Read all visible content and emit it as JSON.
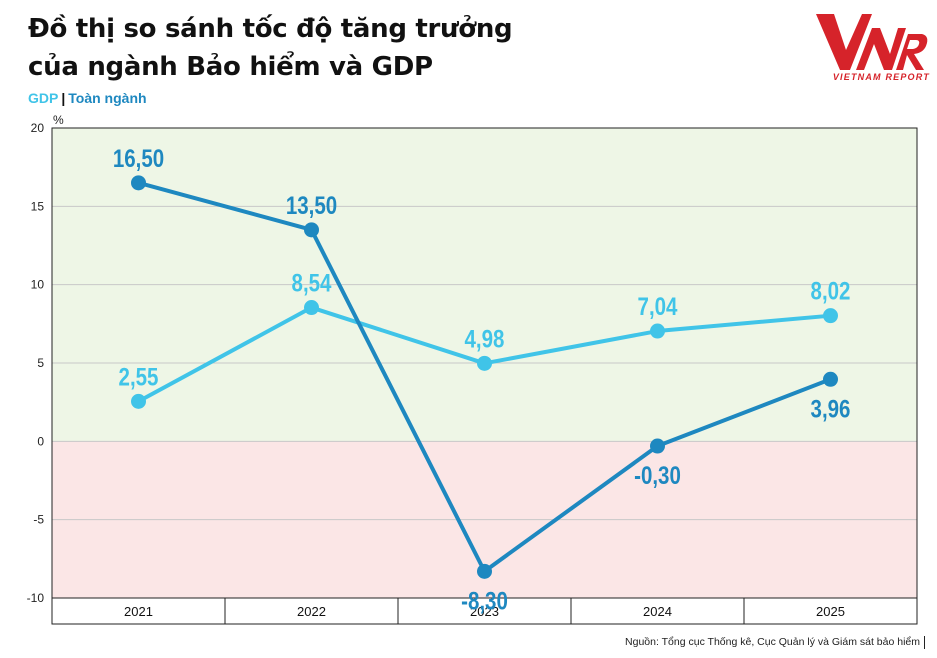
{
  "header": {
    "title_line1": "Đồ thị so sánh tốc độ tăng trưởng",
    "title_line2": "của ngành Bảo hiểm và GDP",
    "legend_gdp": "GDP",
    "legend_separator": "|",
    "legend_industry": "Toàn ngành"
  },
  "logo": {
    "mark": "VNR",
    "subtitle": "VIETNAM REPORT",
    "color": "#d6232a"
  },
  "source": "Nguồn: Tổng cục Thống kê, Cục Quản lý và Giám sát bảo hiểm",
  "colors": {
    "gdp": "#40c4e8",
    "industry": "#1e88c0",
    "positive_zone": "#eef6e6",
    "negative_zone": "#fbe6e6"
  },
  "chart_data": {
    "type": "line",
    "title": "Đồ thị so sánh tốc độ tăng trưởng của ngành Bảo hiểm và GDP",
    "ylabel": "%",
    "categories": [
      "2021",
      "2022",
      "2023",
      "2024",
      "2025"
    ],
    "ylim": [
      -10,
      20
    ],
    "yticks": [
      20,
      15,
      10,
      5,
      0,
      -5,
      -10
    ],
    "grid": true,
    "legend": "top-left",
    "series": [
      {
        "name": "GDP",
        "values": [
          2.55,
          8.54,
          4.98,
          7.04,
          8.02
        ],
        "labels": [
          "2,55",
          "8,54",
          "4,98",
          "7,04",
          "8,02"
        ]
      },
      {
        "name": "Toàn ngành",
        "values": [
          16.5,
          13.5,
          -8.3,
          -0.3,
          3.96
        ],
        "labels": [
          "16,50",
          "13,50",
          "-8,30",
          "-0,30",
          "3,96"
        ]
      }
    ]
  }
}
